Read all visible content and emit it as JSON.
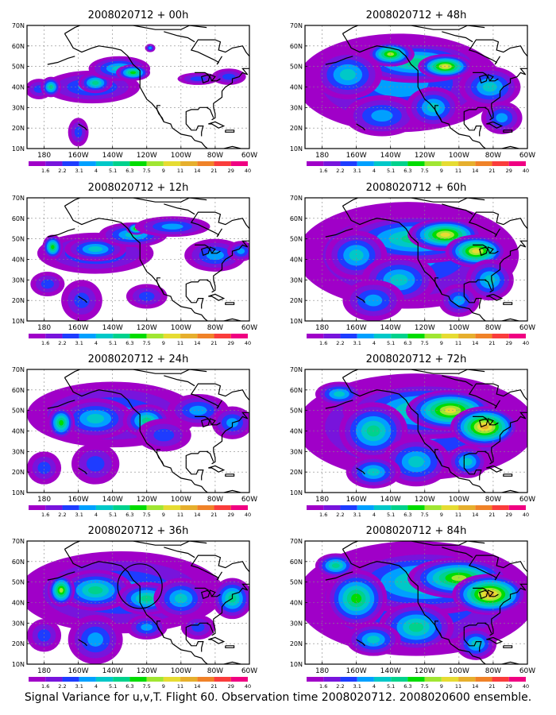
{
  "caption": "Signal Variance for u,v,T. Flight 60. Observation time 2008020712. 2008020600 ensemble.",
  "colorbar": {
    "labels": [
      "1.6",
      "2.2",
      "3.1",
      "4",
      "5.1",
      "6.3",
      "7.5",
      "9",
      "11",
      "14",
      "21",
      "29",
      "40"
    ],
    "colors": [
      "#a000c8",
      "#7814dc",
      "#1e3cff",
      "#00a0ff",
      "#00c8c8",
      "#00d28c",
      "#00dc00",
      "#a0e632",
      "#e6dc32",
      "#e6af2d",
      "#f08228",
      "#fa3c3c",
      "#f00082"
    ]
  },
  "axes": {
    "lon_labels": [
      "180",
      "160W",
      "140W",
      "120W",
      "100W",
      "80W",
      "60W"
    ],
    "lat_labels": [
      "70N",
      "60N",
      "50N",
      "40N",
      "30N",
      "20N",
      "10N"
    ],
    "lon_range": [
      -190,
      -60
    ],
    "lat_range": [
      10,
      70
    ]
  },
  "panels": [
    {
      "title": "2008020712 + 00h",
      "level": 1
    },
    {
      "title": "2008020712 + 12h",
      "level": 2
    },
    {
      "title": "2008020712 + 24h",
      "level": 3
    },
    {
      "title": "2008020712 + 36h",
      "level": 4,
      "circle": {
        "lon": -124,
        "lat": 48
      }
    },
    {
      "title": "2008020712 + 48h",
      "level": 5
    },
    {
      "title": "2008020712 + 60h",
      "level": 6
    },
    {
      "title": "2008020712 + 72h",
      "level": 7
    },
    {
      "title": "2008020712 + 84h",
      "level": 8
    }
  ]
}
